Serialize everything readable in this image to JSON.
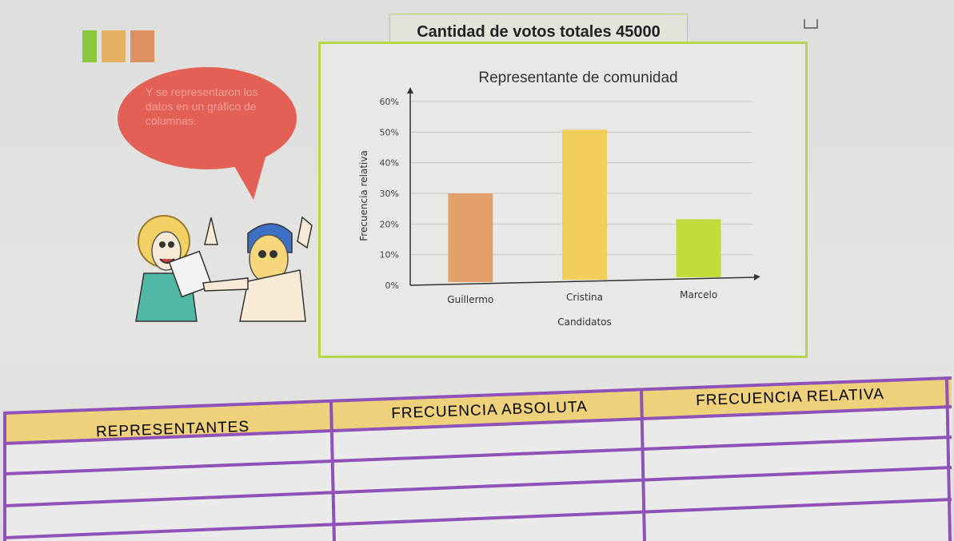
{
  "header": {
    "total_label": "Cantidad de votos totales 45000"
  },
  "speech_bubble": {
    "text": "Y se representaron los datos en un gráfico de columnas."
  },
  "table": {
    "headers": [
      "REPRESENTANTES",
      "FRECUENCIA ABSOLUTA",
      "FRECUENCIA RELATIVA"
    ],
    "rows": [
      [
        "",
        "",
        ""
      ],
      [
        "",
        "",
        ""
      ],
      [
        "",
        "",
        ""
      ]
    ],
    "border_color": "#8e52b8",
    "header_bg": "#efd17c"
  },
  "colors": {
    "chart_frame": "#b8d64a",
    "bubble": "#e26055",
    "squares": [
      "#8cc63f",
      "#e5b060",
      "#dd9060"
    ]
  },
  "chart_data": {
    "type": "bar",
    "title": "Representante de comunidad",
    "xlabel": "Candidatos",
    "ylabel": "Frecuencia relativa",
    "categories": [
      "Guillermo",
      "Cristina",
      "Marcelo"
    ],
    "values": [
      30,
      50,
      20
    ],
    "bar_colors": [
      "#e3a06a",
      "#f2cf5c",
      "#c3dc3c"
    ],
    "ylim": [
      0,
      60
    ],
    "yticks": [
      "0%",
      "10%",
      "20%",
      "30%",
      "40%",
      "50%",
      "60%"
    ],
    "grid": true
  }
}
